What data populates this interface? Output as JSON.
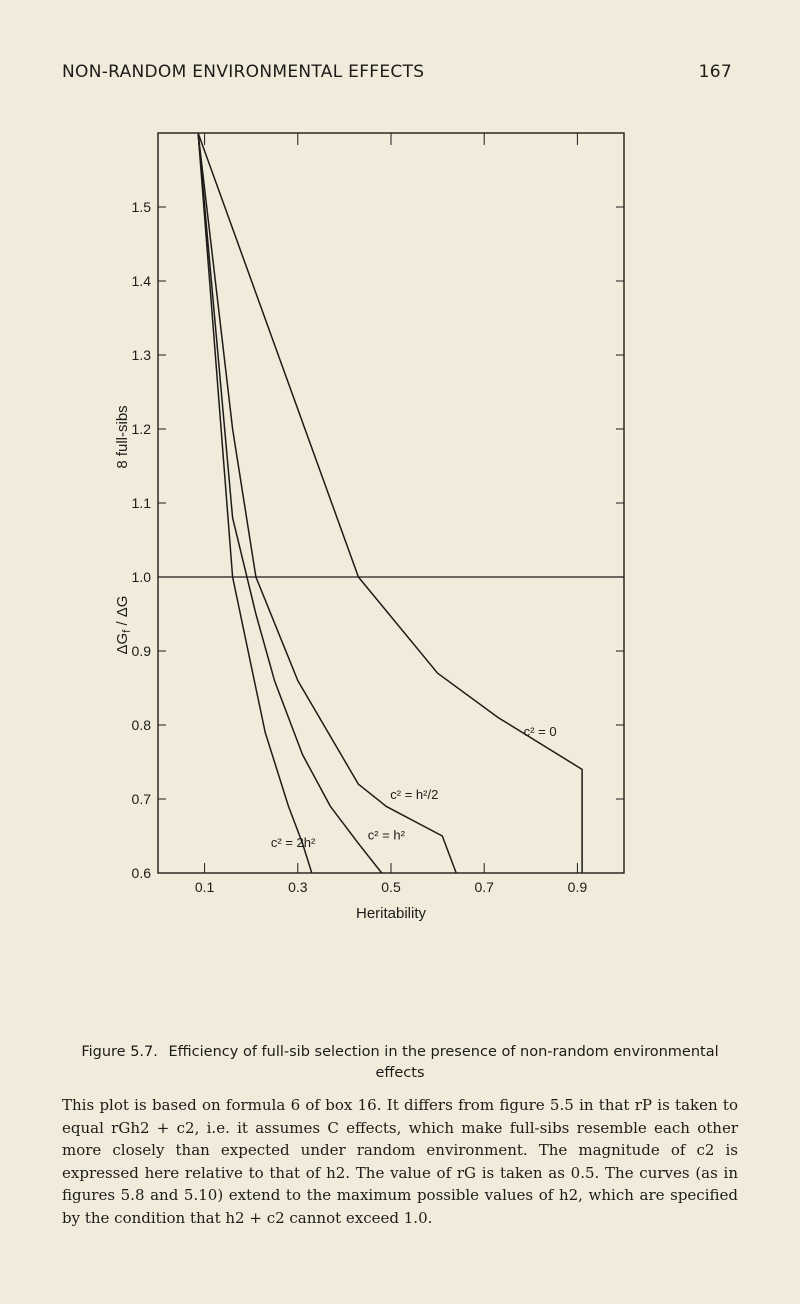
{
  "header": {
    "running_title": "NON-RANDOM ENVIRONMENTAL EFFECTS",
    "page_number": "167"
  },
  "figure": {
    "caption_label": "Figure 5.7.",
    "caption_text": "Efficiency of full-sib selection in the presence of non-random environmental effects"
  },
  "chart_data": {
    "type": "line",
    "title": "",
    "xlabel": "Heritability",
    "ylabel": "ΔG_f / ΔG",
    "ylabel_secondary": "8 full-sibs",
    "xlim": [
      0.0,
      1.0
    ],
    "ylim": [
      0.6,
      1.6
    ],
    "x_ticks": [
      "0.1",
      "0.3",
      "0.5",
      "0.7",
      "0.9"
    ],
    "y_ticks": [
      "1.5",
      "1.4",
      "1.3",
      "1.2",
      "1.1",
      "1.0",
      "0.9",
      "0.8",
      "0.7",
      "0.6"
    ],
    "reference_line": 1.0,
    "series": [
      {
        "name": "c² = 0",
        "points": [
          [
            0.086,
            1.6
          ],
          [
            0.43,
            1.0
          ],
          [
            0.6,
            0.87
          ],
          [
            0.73,
            0.81
          ],
          [
            0.91,
            0.74
          ],
          [
            0.91,
            0.6
          ]
        ]
      },
      {
        "name": "c² = h²/2",
        "points": [
          [
            0.086,
            1.6
          ],
          [
            0.16,
            1.2
          ],
          [
            0.21,
            1.0
          ],
          [
            0.3,
            0.86
          ],
          [
            0.43,
            0.72
          ],
          [
            0.49,
            0.69
          ],
          [
            0.61,
            0.65
          ],
          [
            0.64,
            0.6
          ]
        ]
      },
      {
        "name": "c² = h²",
        "points": [
          [
            0.086,
            1.6
          ],
          [
            0.16,
            1.08
          ],
          [
            0.21,
            0.95
          ],
          [
            0.25,
            0.86
          ],
          [
            0.31,
            0.76
          ],
          [
            0.37,
            0.69
          ],
          [
            0.43,
            0.64
          ],
          [
            0.48,
            0.6
          ]
        ]
      },
      {
        "name": "c² = 2h²",
        "points": [
          [
            0.086,
            1.6
          ],
          [
            0.16,
            1.0
          ],
          [
            0.2,
            0.88
          ],
          [
            0.23,
            0.79
          ],
          [
            0.28,
            0.69
          ],
          [
            0.31,
            0.64
          ],
          [
            0.33,
            0.6
          ]
        ]
      }
    ]
  },
  "body": {
    "paragraph": "This plot is based on formula 6 of box 16. It differs from figure 5.5 in that rP is taken to equal rGh2 + c2, i.e. it assumes C effects, which make full-sibs resemble each other more closely than expected under random environment. The magnitude of c2 is expressed here relative to that of h2. The value of rG is taken as 0.5. The curves (as in figures 5.8 and 5.10) extend to the maximum possible values of h2, which are specified by the condition that h2 + c2 cannot exceed 1.0."
  }
}
